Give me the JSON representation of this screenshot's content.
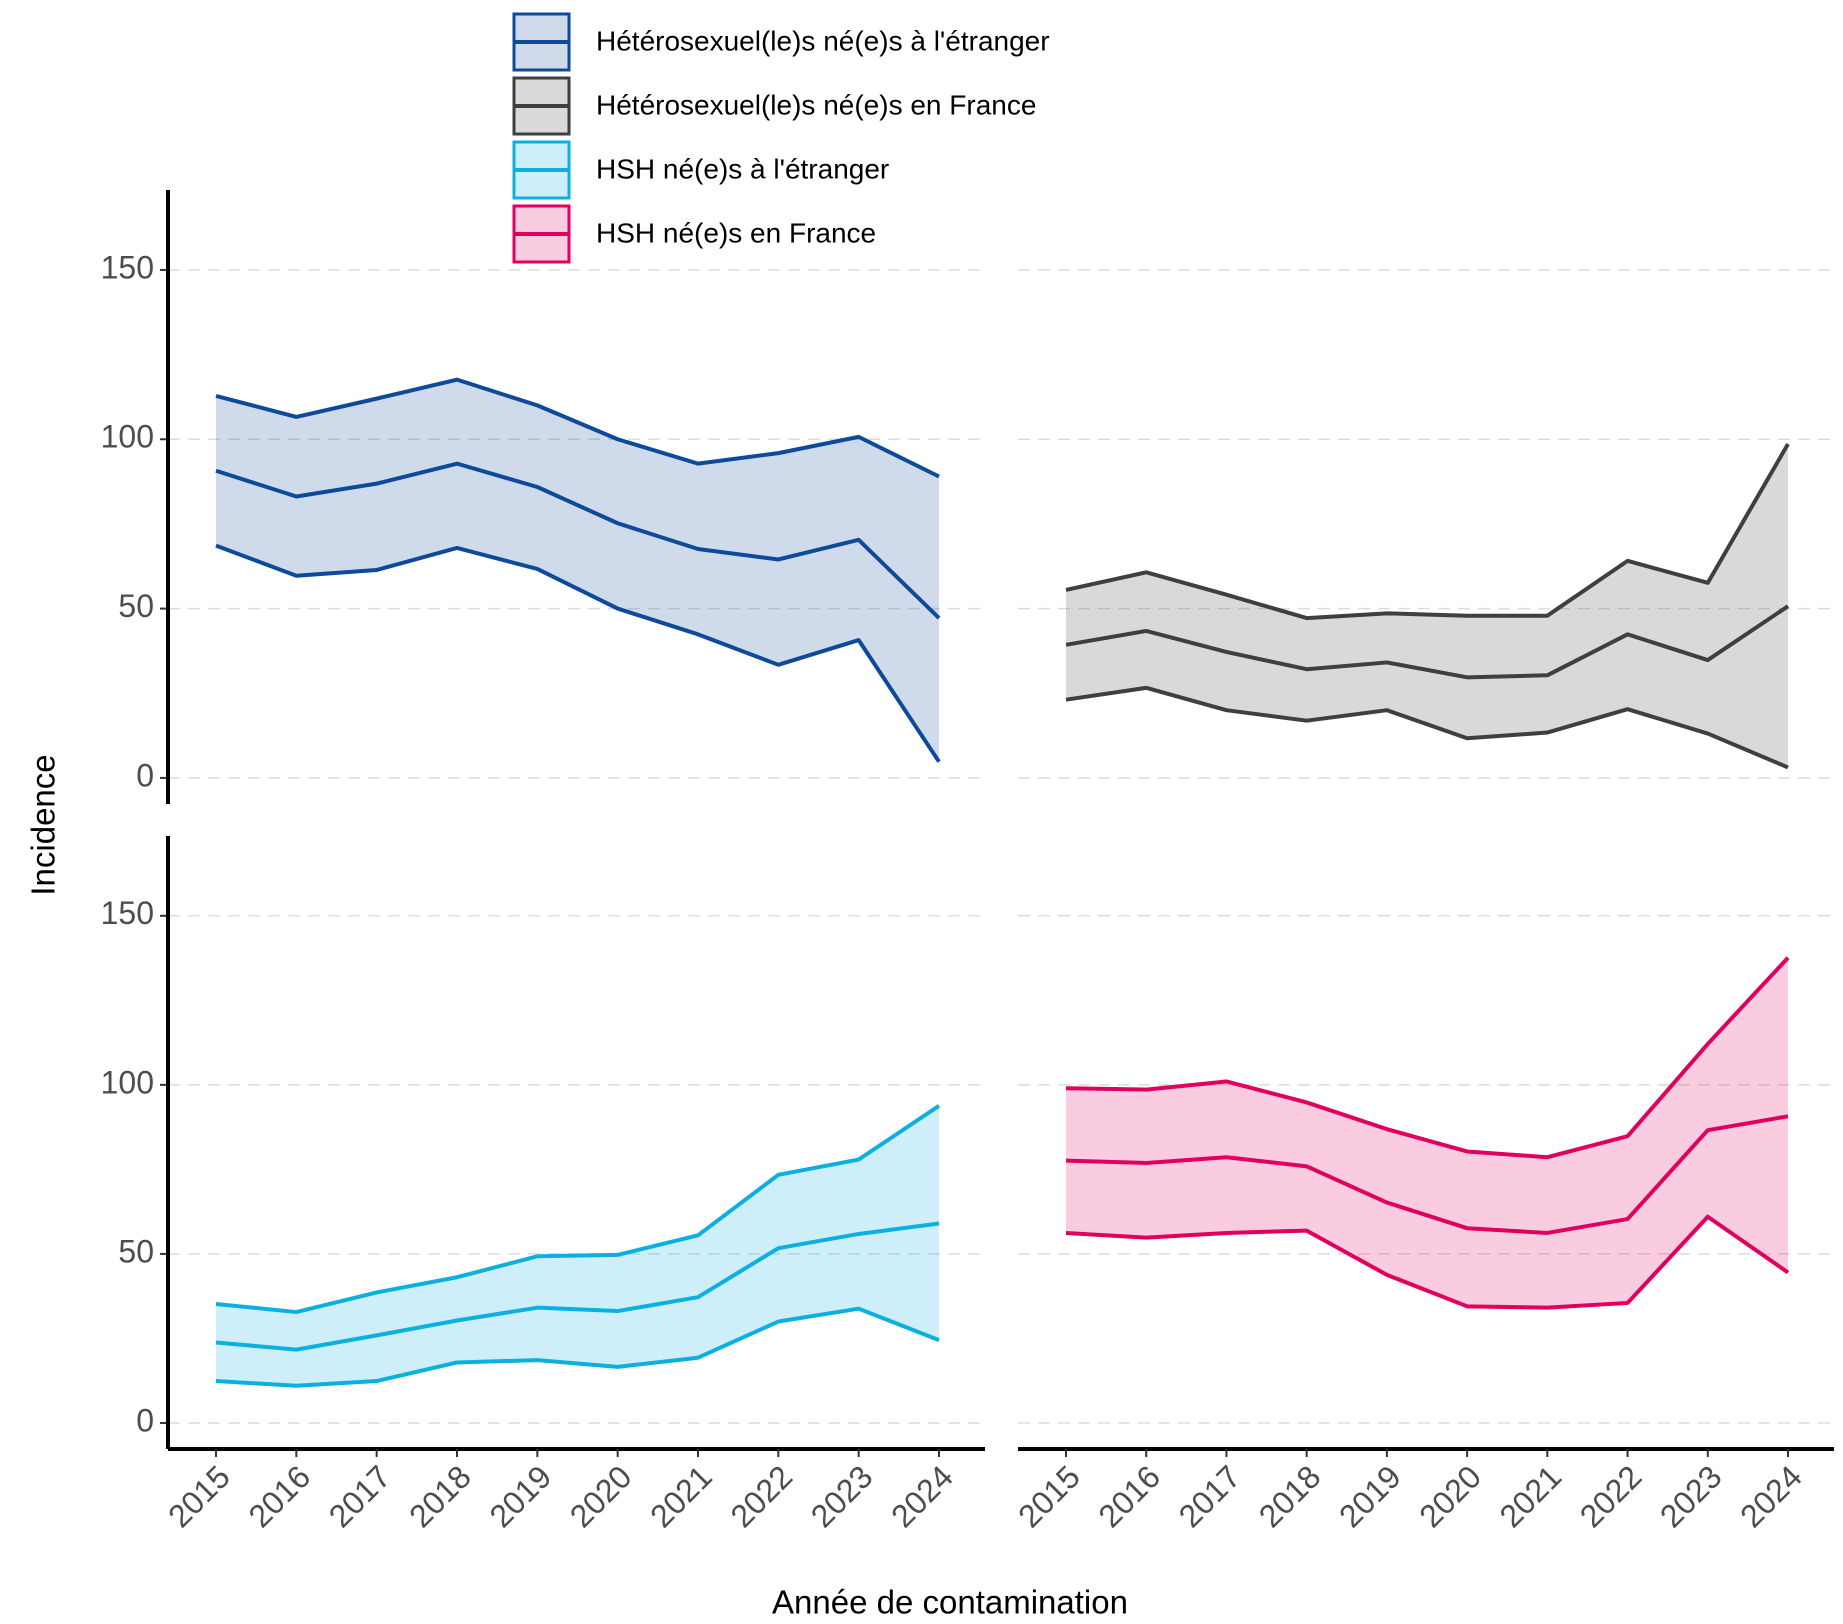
{
  "chart_data": {
    "type": "line",
    "x_label": "Année de contamination",
    "y_label": "Incidence",
    "x": [
      "2015",
      "2016",
      "2017",
      "2018",
      "2019",
      "2020",
      "2021",
      "2022",
      "2023",
      "2024"
    ],
    "ylim": [
      -7.7,
      173.6
    ],
    "yticks": [
      0,
      50,
      100,
      150
    ],
    "grid": true,
    "legend": "top-left",
    "series": [
      {
        "name": "Hétérosexuel(le)s né(e)s à l'étranger",
        "color": "#0d4a99",
        "values": [
          90.7,
          83.1,
          86.9,
          92.8,
          85.9,
          75.2,
          67.6,
          64.5,
          70.3,
          47.2
        ],
        "lower": [
          68.6,
          59.7,
          61.4,
          67.9,
          61.7,
          50,
          42.4,
          33.4,
          40.7,
          4.8
        ],
        "upper": [
          112.8,
          106.6,
          112,
          117.6,
          110,
          100,
          92.8,
          95.9,
          100.7,
          89
        ]
      },
      {
        "name": "Hétérosexuel(le)s né(e)s en France",
        "color": "#3f3f3f",
        "values": [
          39.3,
          43.4,
          37.2,
          32.1,
          34.1,
          29.7,
          30.3,
          42.4,
          34.8,
          50.7
        ],
        "lower": [
          23.1,
          26.6,
          20,
          16.9,
          20,
          11.7,
          13.4,
          20.3,
          13.1,
          3.1
        ],
        "upper": [
          55.5,
          60.7,
          54.1,
          47.2,
          48.6,
          47.9,
          47.9,
          64.1,
          57.6,
          98.6
        ]
      },
      {
        "name": "HSH né(e)s à l'étranger",
        "color": "#0cb0e0",
        "values": [
          23.8,
          21.7,
          25.9,
          30.3,
          34.1,
          33.1,
          37.2,
          51.7,
          55.9,
          59
        ],
        "lower": [
          12.4,
          11,
          12.4,
          17.9,
          18.6,
          16.6,
          19.3,
          30,
          33.8,
          24.5
        ],
        "upper": [
          35.2,
          32.8,
          38.6,
          43.1,
          49.3,
          49.7,
          55.5,
          73.4,
          77.9,
          93.8
        ]
      },
      {
        "name": "HSH né(e)s en France",
        "color": "#e0005e",
        "values": [
          77.6,
          76.9,
          78.6,
          75.9,
          65.2,
          57.6,
          56.2,
          60.3,
          86.6,
          90.7
        ],
        "lower": [
          56.2,
          54.8,
          56.2,
          56.9,
          43.8,
          34.5,
          34.1,
          35.5,
          61,
          44.5
        ],
        "upper": [
          99,
          98.6,
          101,
          94.8,
          86.9,
          80.3,
          78.6,
          84.8,
          112.1,
          137.6
        ]
      }
    ]
  }
}
